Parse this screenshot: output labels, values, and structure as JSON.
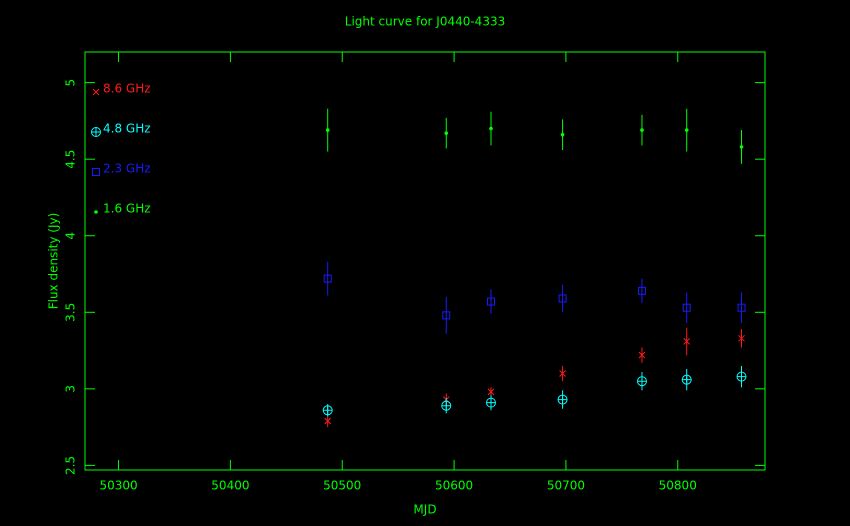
{
  "chart_data": {
    "type": "scatter",
    "title": "Light curve for J0440-4333",
    "x_label": "MJD",
    "y_label": "Flux density (Jy)",
    "axis_color": "#00ff00",
    "legend": "upper left",
    "xlim": [
      50270,
      50878
    ],
    "xticks": [
      50300,
      50400,
      50500,
      50600,
      50700,
      50800
    ],
    "ylim": [
      2.47,
      5.2
    ],
    "yticks": [
      2.5,
      3,
      3.5,
      4,
      4.5,
      5
    ],
    "x": [
      50487,
      50593,
      50633,
      50697,
      50768,
      50808,
      50857
    ],
    "series": [
      {
        "name": "8.6 GHz",
        "color": "#ff1a1a",
        "marker": "cross",
        "values": [
          2.79,
          2.93,
          2.98,
          3.1,
          3.22,
          3.31,
          3.33
        ],
        "errors": [
          0.04,
          0.04,
          0.03,
          0.05,
          0.05,
          0.09,
          0.06
        ]
      },
      {
        "name": "4.8 GHz",
        "color": "#00ffff",
        "marker": "circle-plus",
        "values": [
          2.86,
          2.89,
          2.91,
          2.93,
          3.05,
          3.06,
          3.08
        ],
        "errors": [
          0.04,
          0.05,
          0.05,
          0.06,
          0.06,
          0.07,
          0.07
        ]
      },
      {
        "name": "2.3 GHz",
        "color": "#1a1aff",
        "marker": "square",
        "values": [
          3.72,
          3.48,
          3.57,
          3.59,
          3.64,
          3.53,
          3.53
        ],
        "errors": [
          0.11,
          0.12,
          0.08,
          0.09,
          0.08,
          0.1,
          0.1
        ]
      },
      {
        "name": "1.6 GHz",
        "color": "#00ff00",
        "marker": "dot",
        "values": [
          4.69,
          4.67,
          4.7,
          4.66,
          4.69,
          4.69,
          4.58
        ],
        "errors": [
          0.14,
          0.1,
          0.11,
          0.1,
          0.1,
          0.14,
          0.11
        ]
      }
    ]
  }
}
